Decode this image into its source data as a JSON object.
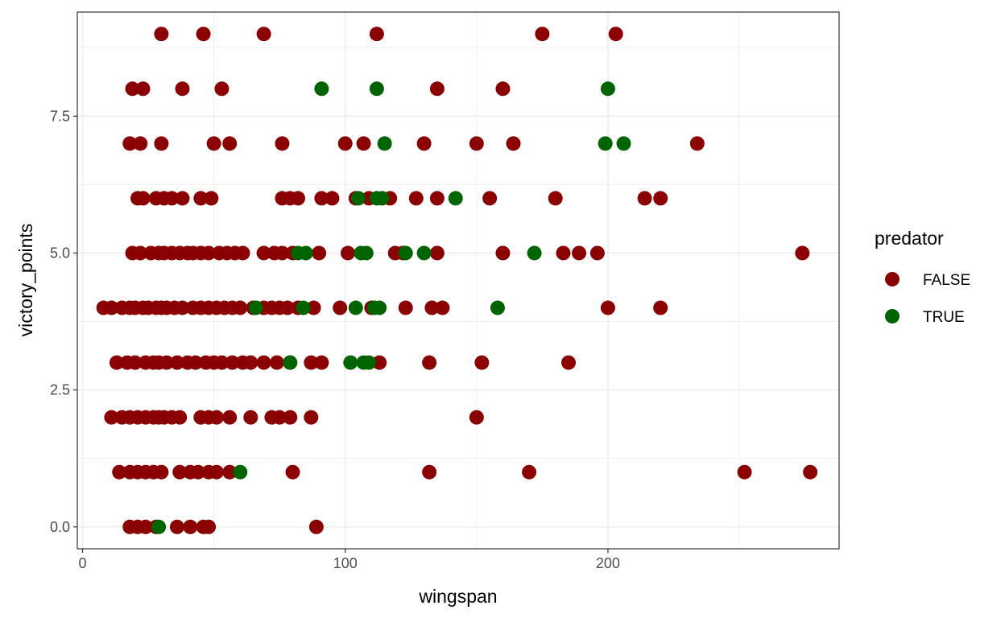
{
  "chart_data": {
    "type": "scatter",
    "xlabel": "wingspan",
    "ylabel": "victory_points",
    "xlim": [
      -2,
      288
    ],
    "ylim": [
      -0.4,
      9.4
    ],
    "x_ticks": [
      0,
      100,
      200
    ],
    "x_tick_labels": [
      "0",
      "100",
      "200"
    ],
    "y_ticks": [
      0,
      2.5,
      5,
      7.5
    ],
    "y_tick_labels": [
      "0.0",
      "2.5",
      "5.0",
      "7.5"
    ],
    "grid": true,
    "legend": {
      "title": "predator",
      "placement": "right"
    },
    "series": [
      {
        "name": "FALSE",
        "color": "#8b0000",
        "points": [
          [
            30,
            9
          ],
          [
            46,
            9
          ],
          [
            69,
            9
          ],
          [
            112,
            9
          ],
          [
            175,
            9
          ],
          [
            203,
            9
          ],
          [
            19,
            8
          ],
          [
            23,
            8
          ],
          [
            38,
            8
          ],
          [
            53,
            8
          ],
          [
            135,
            8
          ],
          [
            160,
            8
          ],
          [
            18,
            7
          ],
          [
            22,
            7
          ],
          [
            30,
            7
          ],
          [
            50,
            7
          ],
          [
            56,
            7
          ],
          [
            76,
            7
          ],
          [
            100,
            7
          ],
          [
            107,
            7
          ],
          [
            130,
            7
          ],
          [
            150,
            7
          ],
          [
            164,
            7
          ],
          [
            234,
            7
          ],
          [
            21,
            6
          ],
          [
            23,
            6
          ],
          [
            28,
            6
          ],
          [
            31,
            6
          ],
          [
            34,
            6
          ],
          [
            38,
            6
          ],
          [
            45,
            6
          ],
          [
            49,
            6
          ],
          [
            76,
            6
          ],
          [
            79,
            6
          ],
          [
            82,
            6
          ],
          [
            91,
            6
          ],
          [
            95,
            6
          ],
          [
            104,
            6
          ],
          [
            109,
            6
          ],
          [
            117,
            6
          ],
          [
            127,
            6
          ],
          [
            135,
            6
          ],
          [
            155,
            6
          ],
          [
            180,
            6
          ],
          [
            214,
            6
          ],
          [
            220,
            6
          ],
          [
            19,
            5
          ],
          [
            22,
            5
          ],
          [
            26,
            5
          ],
          [
            29,
            5
          ],
          [
            31,
            5
          ],
          [
            34,
            5
          ],
          [
            37,
            5
          ],
          [
            40,
            5
          ],
          [
            42,
            5
          ],
          [
            45,
            5
          ],
          [
            48,
            5
          ],
          [
            52,
            5
          ],
          [
            55,
            5
          ],
          [
            58,
            5
          ],
          [
            61,
            5
          ],
          [
            69,
            5
          ],
          [
            73,
            5
          ],
          [
            76,
            5
          ],
          [
            80,
            5
          ],
          [
            90,
            5
          ],
          [
            101,
            5
          ],
          [
            119,
            5
          ],
          [
            122,
            5
          ],
          [
            135,
            5
          ],
          [
            160,
            5
          ],
          [
            183,
            5
          ],
          [
            189,
            5
          ],
          [
            196,
            5
          ],
          [
            274,
            5
          ],
          [
            8,
            4
          ],
          [
            11,
            4
          ],
          [
            15,
            4
          ],
          [
            18,
            4
          ],
          [
            20,
            4
          ],
          [
            23,
            4
          ],
          [
            25,
            4
          ],
          [
            28,
            4
          ],
          [
            30,
            4
          ],
          [
            32,
            4
          ],
          [
            35,
            4
          ],
          [
            38,
            4
          ],
          [
            42,
            4
          ],
          [
            45,
            4
          ],
          [
            48,
            4
          ],
          [
            51,
            4
          ],
          [
            54,
            4
          ],
          [
            57,
            4
          ],
          [
            60,
            4
          ],
          [
            65,
            4
          ],
          [
            69,
            4
          ],
          [
            72,
            4
          ],
          [
            75,
            4
          ],
          [
            78,
            4
          ],
          [
            82,
            4
          ],
          [
            88,
            4
          ],
          [
            98,
            4
          ],
          [
            110,
            4
          ],
          [
            123,
            4
          ],
          [
            133,
            4
          ],
          [
            137,
            4
          ],
          [
            200,
            4
          ],
          [
            220,
            4
          ],
          [
            13,
            3
          ],
          [
            17,
            3
          ],
          [
            20,
            3
          ],
          [
            24,
            3
          ],
          [
            27,
            3
          ],
          [
            29,
            3
          ],
          [
            32,
            3
          ],
          [
            36,
            3
          ],
          [
            40,
            3
          ],
          [
            43,
            3
          ],
          [
            47,
            3
          ],
          [
            50,
            3
          ],
          [
            53,
            3
          ],
          [
            57,
            3
          ],
          [
            61,
            3
          ],
          [
            64,
            3
          ],
          [
            69,
            3
          ],
          [
            74,
            3
          ],
          [
            79,
            3
          ],
          [
            87,
            3
          ],
          [
            91,
            3
          ],
          [
            113,
            3
          ],
          [
            132,
            3
          ],
          [
            152,
            3
          ],
          [
            185,
            3
          ],
          [
            11,
            2
          ],
          [
            15,
            2
          ],
          [
            18,
            2
          ],
          [
            21,
            2
          ],
          [
            24,
            2
          ],
          [
            27,
            2
          ],
          [
            29,
            2
          ],
          [
            31,
            2
          ],
          [
            34,
            2
          ],
          [
            37,
            2
          ],
          [
            45,
            2
          ],
          [
            48,
            2
          ],
          [
            51,
            2
          ],
          [
            56,
            2
          ],
          [
            64,
            2
          ],
          [
            72,
            2
          ],
          [
            75,
            2
          ],
          [
            79,
            2
          ],
          [
            87,
            2
          ],
          [
            150,
            2
          ],
          [
            14,
            1
          ],
          [
            18,
            1
          ],
          [
            21,
            1
          ],
          [
            24,
            1
          ],
          [
            27,
            1
          ],
          [
            30,
            1
          ],
          [
            37,
            1
          ],
          [
            41,
            1
          ],
          [
            44,
            1
          ],
          [
            48,
            1
          ],
          [
            51,
            1
          ],
          [
            56,
            1
          ],
          [
            80,
            1
          ],
          [
            132,
            1
          ],
          [
            170,
            1
          ],
          [
            252,
            1
          ],
          [
            277,
            1
          ],
          [
            18,
            0
          ],
          [
            21,
            0
          ],
          [
            24,
            0
          ],
          [
            28,
            0
          ],
          [
            36,
            0
          ],
          [
            41,
            0
          ],
          [
            46,
            0
          ],
          [
            48,
            0
          ],
          [
            89,
            0
          ]
        ]
      },
      {
        "name": "TRUE",
        "color": "#006400",
        "points": [
          [
            91,
            8
          ],
          [
            112,
            8
          ],
          [
            200,
            8
          ],
          [
            115,
            7
          ],
          [
            199,
            7
          ],
          [
            206,
            7
          ],
          [
            105,
            6
          ],
          [
            112,
            6
          ],
          [
            114,
            6
          ],
          [
            142,
            6
          ],
          [
            82,
            5
          ],
          [
            85,
            5
          ],
          [
            106,
            5
          ],
          [
            108,
            5
          ],
          [
            123,
            5
          ],
          [
            130,
            5
          ],
          [
            172,
            5
          ],
          [
            66,
            4
          ],
          [
            84,
            4
          ],
          [
            104,
            4
          ],
          [
            111,
            4
          ],
          [
            113,
            4
          ],
          [
            158,
            4
          ],
          [
            79,
            3
          ],
          [
            102,
            3
          ],
          [
            107,
            3
          ],
          [
            109,
            3
          ],
          [
            60,
            1
          ],
          [
            29,
            0
          ]
        ]
      }
    ]
  }
}
